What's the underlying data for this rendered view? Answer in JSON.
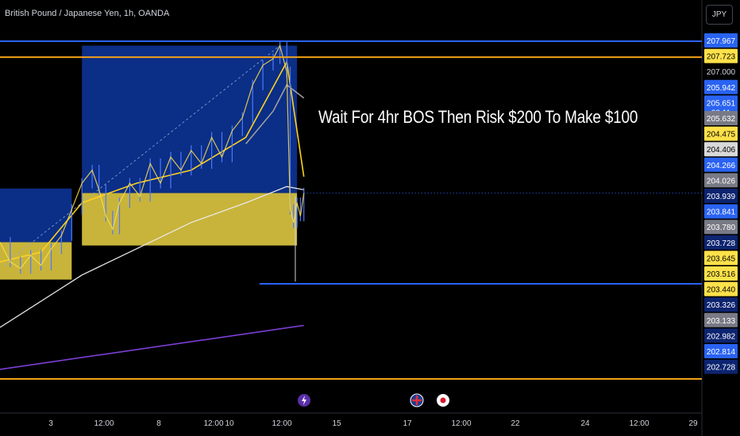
{
  "header": {
    "symbol": "British Pound / Japanese Yen, 1h, OANDA",
    "currency_button": "JPY"
  },
  "annotation_text": "Wait For 4hr BOS Then Risk $200 To Make $100",
  "colors": {
    "background": "#000000",
    "zone_blue": "#0b2e86",
    "zone_yellow": "#c8b43a",
    "line_blue": "#2a63f2",
    "line_orange": "#f2a318",
    "ma_yellow": "#ffd21e",
    "ma_white": "#e8e8e8",
    "ma_gray": "#9e9e9e",
    "ma_purple": "#7b3fd6",
    "candle_up": "#4d78ff",
    "candle_body": "#ffe14a"
  },
  "icons": [
    "lightning-event-icon",
    "uk-flag-event-icon",
    "japan-flag-event-icon"
  ],
  "chart_data": {
    "type": "line",
    "title": "British Pound / Japanese Yen, 1h, OANDA",
    "x_ticks": [
      "3",
      "12:00",
      "8",
      "12:00",
      "10",
      "12:00",
      "15",
      "17",
      "12:00",
      "22",
      "24",
      "12:00",
      "29"
    ],
    "price_labels": [
      {
        "value": "207.967",
        "bg": "#2a63f2",
        "fg": "#ffffff"
      },
      {
        "value": "207.723",
        "bg": "#ffe14a",
        "fg": "#000000"
      },
      {
        "value": "207.000",
        "bg": "",
        "fg": "#d1d4dc"
      },
      {
        "value": "205.942",
        "bg": "#2a63f2",
        "fg": "#ffffff"
      },
      {
        "value": "205.651",
        "bg": "#2a63f2",
        "fg": "#ffffff",
        "sub": "08:11"
      },
      {
        "value": "205.632",
        "bg": "#787b86",
        "fg": "#ffffff"
      },
      {
        "value": "204.475",
        "bg": "#ffe14a",
        "fg": "#000000"
      },
      {
        "value": "204.406",
        "bg": "#d9d9d9",
        "fg": "#000000"
      },
      {
        "value": "204.266",
        "bg": "#2a63f2",
        "fg": "#ffffff"
      },
      {
        "value": "204.026",
        "bg": "#787b86",
        "fg": "#ffffff"
      },
      {
        "value": "203.939",
        "bg": "#0d2470",
        "fg": "#ffffff"
      },
      {
        "value": "203.841",
        "bg": "#2a63f2",
        "fg": "#ffffff"
      },
      {
        "value": "203.780",
        "bg": "#787b86",
        "fg": "#ffffff"
      },
      {
        "value": "203.728",
        "bg": "#0d2470",
        "fg": "#ffffff"
      },
      {
        "value": "203.645",
        "bg": "#ffe14a",
        "fg": "#000000"
      },
      {
        "value": "203.516",
        "bg": "#ffe14a",
        "fg": "#000000"
      },
      {
        "value": "203.440",
        "bg": "#ffe14a",
        "fg": "#000000"
      },
      {
        "value": "203.326",
        "bg": "#0d2470",
        "fg": "#ffffff"
      },
      {
        "value": "203.133",
        "bg": "#787b86",
        "fg": "#ffffff"
      },
      {
        "value": "202.982",
        "bg": "#0d2470",
        "fg": "#ffffff"
      },
      {
        "value": "202.814",
        "bg": "#2a63f2",
        "fg": "#ffffff"
      },
      {
        "value": "202.728",
        "bg": "#0d2470",
        "fg": "#ffffff"
      }
    ],
    "horizontal_levels": [
      {
        "name": "upper-blue-level",
        "value": 207.967,
        "color": "#2a63f2"
      },
      {
        "name": "upper-orange-level",
        "value": 207.723,
        "color": "#f2a318"
      },
      {
        "name": "lower-blue-level",
        "value": 204.266,
        "color": "#2a63f2"
      },
      {
        "name": "lower-orange-level",
        "value": 202.814,
        "color": "#f2a318"
      }
    ],
    "price_series": [
      {
        "t": 0,
        "p": 204.9
      },
      {
        "t": 3,
        "p": 204.6
      },
      {
        "t": 6,
        "p": 204.5
      },
      {
        "t": 9,
        "p": 204.7
      },
      {
        "t": 12,
        "p": 204.55
      },
      {
        "t": 15,
        "p": 204.8
      },
      {
        "t": 18,
        "p": 205.0
      },
      {
        "t": 21,
        "p": 205.4
      },
      {
        "t": 24,
        "p": 205.8
      },
      {
        "t": 27,
        "p": 206.0
      },
      {
        "t": 29,
        "p": 205.7
      },
      {
        "t": 31,
        "p": 205.3
      },
      {
        "t": 33,
        "p": 205.1
      },
      {
        "t": 35,
        "p": 205.5
      },
      {
        "t": 38,
        "p": 205.8
      },
      {
        "t": 41,
        "p": 205.6
      },
      {
        "t": 44,
        "p": 206.1
      },
      {
        "t": 47,
        "p": 205.8
      },
      {
        "t": 50,
        "p": 206.2
      },
      {
        "t": 53,
        "p": 206.0
      },
      {
        "t": 56,
        "p": 206.3
      },
      {
        "t": 59,
        "p": 206.1
      },
      {
        "t": 62,
        "p": 206.5
      },
      {
        "t": 65,
        "p": 206.2
      },
      {
        "t": 68,
        "p": 206.6
      },
      {
        "t": 71,
        "p": 206.8
      },
      {
        "t": 74,
        "p": 207.3
      },
      {
        "t": 77,
        "p": 207.6
      },
      {
        "t": 80,
        "p": 207.7
      },
      {
        "t": 82,
        "p": 207.9
      },
      {
        "t": 84,
        "p": 207.5
      },
      {
        "t": 85,
        "p": 205.4
      },
      {
        "t": 86,
        "p": 205.2
      },
      {
        "t": 87,
        "p": 205.5
      },
      {
        "t": 88,
        "p": 205.3
      },
      {
        "t": 89,
        "p": 205.65
      }
    ],
    "moving_averages": [
      {
        "name": "fast-ma",
        "color": "#ffd21e",
        "points": [
          [
            0,
            204.6
          ],
          [
            12,
            204.75
          ],
          [
            24,
            205.5
          ],
          [
            40,
            205.8
          ],
          [
            56,
            206.0
          ],
          [
            72,
            206.5
          ],
          [
            84,
            207.65
          ],
          [
            89,
            205.9
          ]
        ]
      },
      {
        "name": "mid-ma",
        "color": "#9e9e9e",
        "points": [
          [
            72,
            206.4
          ],
          [
            80,
            206.9
          ],
          [
            84,
            207.3
          ],
          [
            89,
            207.1
          ]
        ]
      },
      {
        "name": "slow-ma",
        "color": "#e8e8e8",
        "points": [
          [
            0,
            203.6
          ],
          [
            12,
            204.0
          ],
          [
            24,
            204.4
          ],
          [
            40,
            204.8
          ],
          [
            56,
            205.2
          ],
          [
            72,
            205.5
          ],
          [
            84,
            205.75
          ],
          [
            89,
            205.7
          ]
        ]
      },
      {
        "name": "long-ma",
        "color": "#7b3fd6",
        "points": [
          [
            0,
            202.96
          ],
          [
            89,
            203.63
          ]
        ]
      }
    ],
    "zones": [
      {
        "name": "left-demand-zone",
        "t0": 0,
        "t1": 21,
        "blue": [
          205.72,
          204.9
        ],
        "yellow": [
          204.9,
          204.33
        ]
      },
      {
        "name": "middle-demand-zone",
        "t0": 24,
        "t1": 87,
        "blue": [
          207.9,
          205.65
        ],
        "yellow": [
          205.65,
          204.85
        ]
      }
    ],
    "x_axis_visible": true,
    "y_axis_side": "right",
    "grid": false
  }
}
